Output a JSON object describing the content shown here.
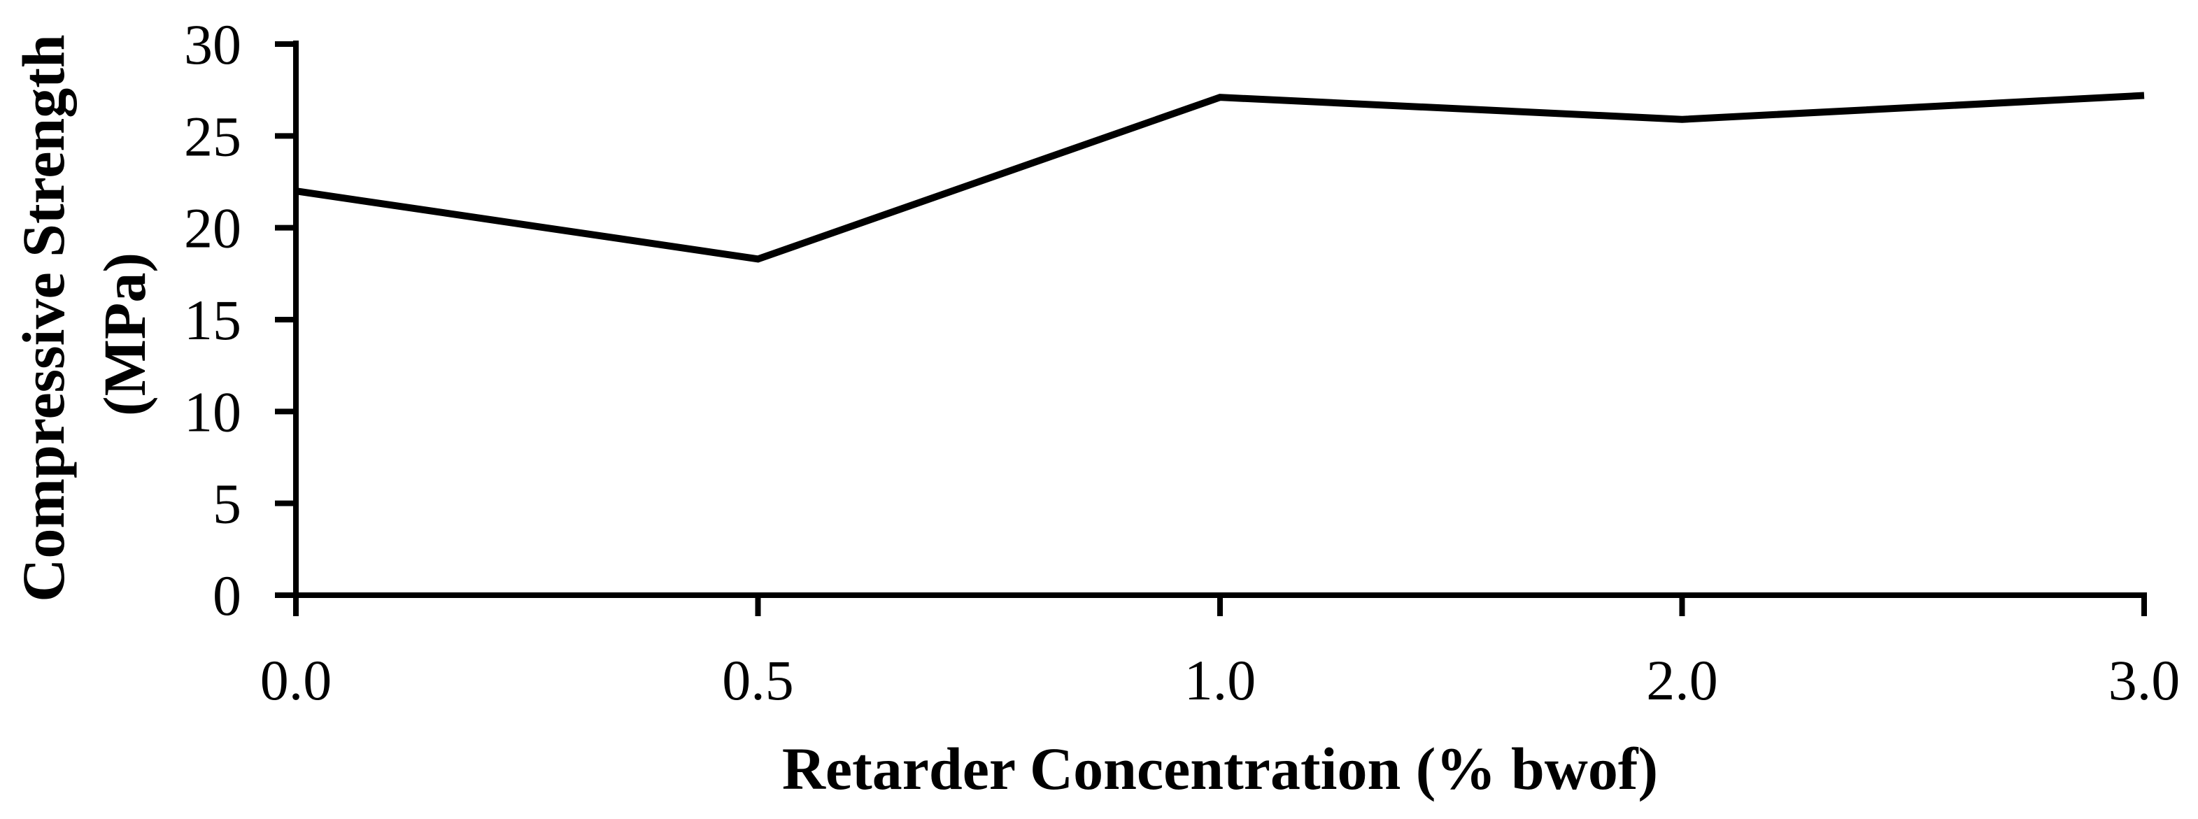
{
  "chart_data": {
    "type": "line",
    "title": "",
    "xlabel": "Retarder Concentration (% bwof)",
    "ylabel_line1": "Compressive Strength",
    "ylabel_line2": "(MPa)",
    "x_tick_labels": [
      "0.0",
      "0.5",
      "1.0",
      "2.0",
      "3.0"
    ],
    "x": [
      0.0,
      0.5,
      1.0,
      2.0,
      3.0
    ],
    "series": [
      {
        "name": "Compressive Strength",
        "values": [
          22.0,
          18.3,
          27.1,
          25.9,
          27.2
        ]
      }
    ],
    "y_ticks": [
      0,
      5,
      10,
      15,
      20,
      25,
      30
    ],
    "ylim": [
      0,
      30
    ],
    "x_spacing": "equal-categorical",
    "grid": false,
    "legend_position": "none",
    "line_color": "#000000",
    "axis_color": "#000000",
    "text_color": "#000000",
    "background_color": "#ffffff"
  }
}
